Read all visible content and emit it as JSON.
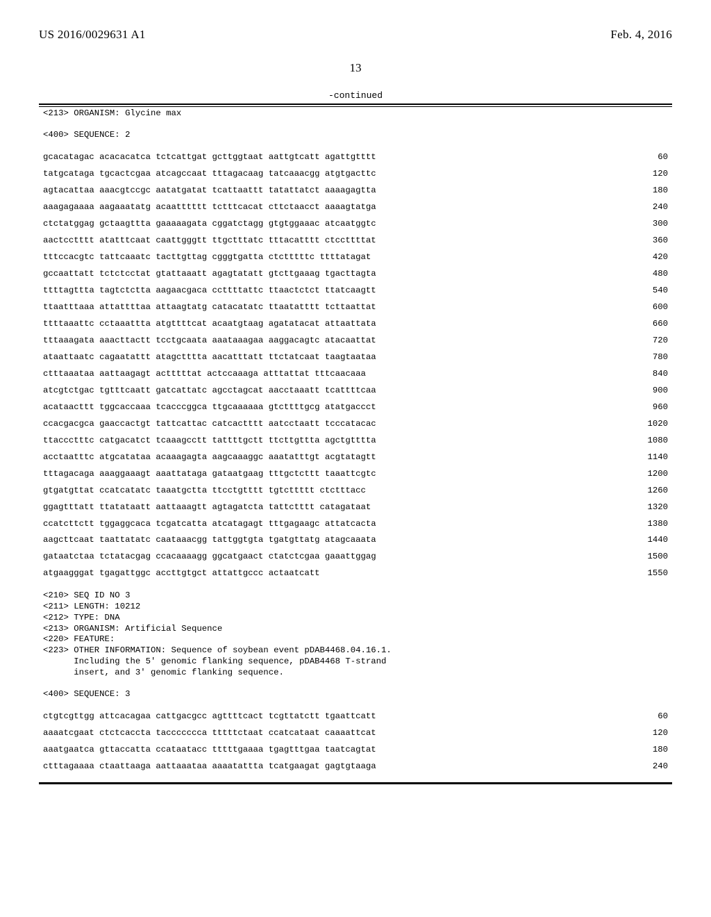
{
  "header": {
    "left": "US 2016/0029631 A1",
    "right": "Feb. 4, 2016"
  },
  "page_number": "13",
  "continued_label": "-continued",
  "pre_block": "<213> ORGANISM: Glycine max\n\n<400> SEQUENCE: 2",
  "seq_rows": [
    {
      "seq": "gcacatagac acacacatca tctcattgat gcttggtaat aattgtcatt agattgtttt",
      "n": "60"
    },
    {
      "seq": "tatgcataga tgcactcgaa atcagccaat tttagacaag tatcaaacgg atgtgacttc",
      "n": "120"
    },
    {
      "seq": "agtacattaa aaacgtccgc aatatgatat tcattaattt tatattatct aaaagagtta",
      "n": "180"
    },
    {
      "seq": "aaagagaaaa aagaaatatg acaatttttt tctttcacat cttctaacct aaaagtatga",
      "n": "240"
    },
    {
      "seq": "ctctatggag gctaagttta gaaaaagata cggatctagg gtgtggaaac atcaatggtc",
      "n": "300"
    },
    {
      "seq": "aactcctttt atatttcaat caattgggtt ttgctttatc tttacatttt ctccttttat",
      "n": "360"
    },
    {
      "seq": "tttccacgtc tattcaaatc tacttgttag cgggtgatta ctctttttc ttttatagat",
      "n": "420"
    },
    {
      "seq": "gccaattatt tctctcctat gtattaaatt agagtatatt gtcttgaaag tgacttagta",
      "n": "480"
    },
    {
      "seq": "ttttagttta tagtctctta aagaacgaca ccttttattc ttaactctct ttatcaagtt",
      "n": "540"
    },
    {
      "seq": "ttaatttaaa attattttaa attaagtatg catacatatc ttaatatttt tcttaattat",
      "n": "600"
    },
    {
      "seq": "ttttaaattc cctaaattta atgttttcat acaatgtaag agatatacat attaattata",
      "n": "660"
    },
    {
      "seq": "tttaaagata aaacttactt tcctgcaata aaataaagaa aaggacagtc atacaattat",
      "n": "720"
    },
    {
      "seq": "ataattaatc cagaatattt atagctttta aacatttatt ttctatcaat taagtaataa",
      "n": "780"
    },
    {
      "seq": "ctttaaataa aattaagagt actttttat actccaaaga atttattat tttcaacaaa",
      "n": "840"
    },
    {
      "seq": "atcgtctgac tgtttcaatt gatcattatc agcctagcat aacctaaatt tcattttcaa",
      "n": "900"
    },
    {
      "seq": "acataacttt tggcaccaaa tcacccggca ttgcaaaaaa gtcttttgcg atatgaccct",
      "n": "960"
    },
    {
      "seq": "ccacgacgca gaaccactgt tattcattac catcactttt aatcctaatt tcccatacac",
      "n": "1020"
    },
    {
      "seq": "ttaccctttc catgacatct tcaaagcctt tattttgctt ttcttgttta agctgtttta",
      "n": "1080"
    },
    {
      "seq": "acctaatttc atgcatataa acaaagagta aagcaaaggc aaatatttgt acgtatagtt",
      "n": "1140"
    },
    {
      "seq": "tttagacaga aaaggaaagt aaattataga gataatgaag tttgctcttt taaattcgtc",
      "n": "1200"
    },
    {
      "seq": "gtgatgttat ccatcatatc taaatgctta ttcctgtttt tgtcttttt ctctttacc",
      "n": "1260"
    },
    {
      "seq": "ggagtttatt ttatataatt aattaaagtt agtagatcta tattctttt catagataat",
      "n": "1320"
    },
    {
      "seq": "ccatcttctt tggaggcaca tcgatcatta atcatagagt tttgagaagc attatcacta",
      "n": "1380"
    },
    {
      "seq": "aagcttcaat taattatatc caataaacgg tattggtgta tgatgttatg atagcaaata",
      "n": "1440"
    },
    {
      "seq": "gataatctaa tctatacgag ccacaaaagg ggcatgaact ctatctcgaa gaaattggag",
      "n": "1500"
    },
    {
      "seq": "atgaagggat tgagattggc accttgtgct attattgccc actaatcatt",
      "n": "1550"
    }
  ],
  "mid_block": "<210> SEQ ID NO 3\n<211> LENGTH: 10212\n<212> TYPE: DNA\n<213> ORGANISM: Artificial Sequence\n<220> FEATURE:\n<223> OTHER INFORMATION: Sequence of soybean event pDAB4468.04.16.1.\n      Including the 5' genomic flanking sequence, pDAB4468 T-strand\n      insert, and 3' genomic flanking sequence.\n\n<400> SEQUENCE: 3",
  "seq_rows_2": [
    {
      "seq": "ctgtcgttgg attcacagaa cattgacgcc agttttcact tcgttatctt tgaattcatt",
      "n": "60"
    },
    {
      "seq": "aaaatcgaat ctctcaccta taccccccca tttttctaat ccatcataat caaaattcat",
      "n": "120"
    },
    {
      "seq": "aaatgaatca gttaccatta ccataatacc tttttgaaaa tgagtttgaa taatcagtat",
      "n": "180"
    },
    {
      "seq": "ctttagaaaa ctaattaaga aattaaataa aaaatattta tcatgaagat gagtgtaaga",
      "n": "240"
    }
  ]
}
